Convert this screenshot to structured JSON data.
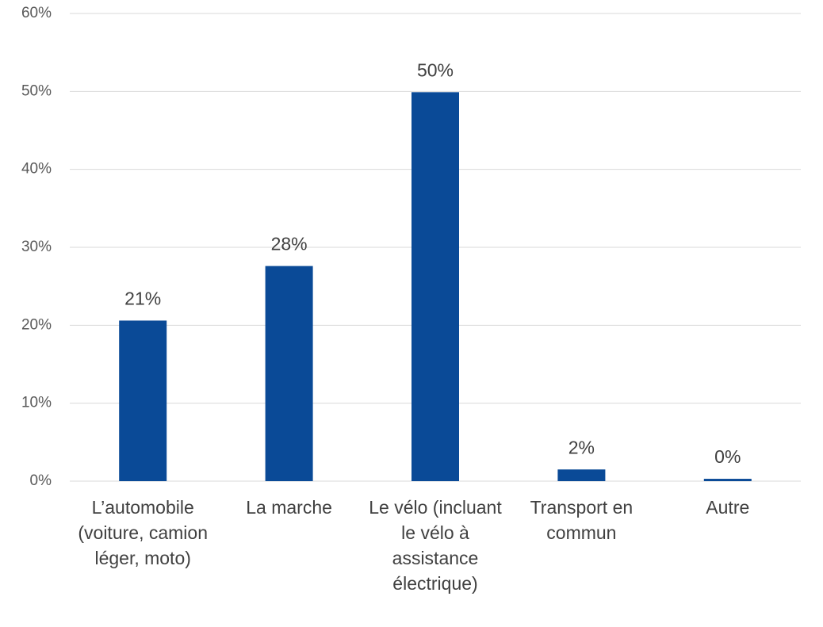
{
  "chart_data": {
    "type": "bar",
    "categories": [
      "L’automobile (voiture, camion léger, moto)",
      "La marche",
      "Le vélo (incluant le vélo à assistance électrique)",
      "Transport en commun",
      "Autre"
    ],
    "values": [
      20.6,
      27.6,
      49.9,
      1.5,
      0.3
    ],
    "value_labels": [
      "21%",
      "28%",
      "50%",
      "2%",
      "0%"
    ],
    "color": "#0a4a97",
    "ylim": [
      0,
      60
    ],
    "yticks": [
      {
        "value": 0,
        "label": "0%"
      },
      {
        "value": 10,
        "label": "10%"
      },
      {
        "value": 20,
        "label": "20%"
      },
      {
        "value": 30,
        "label": "30%"
      },
      {
        "value": 40,
        "label": "40%"
      },
      {
        "value": 50,
        "label": "50%"
      },
      {
        "value": 60,
        "label": "60%"
      }
    ],
    "grid": true
  }
}
